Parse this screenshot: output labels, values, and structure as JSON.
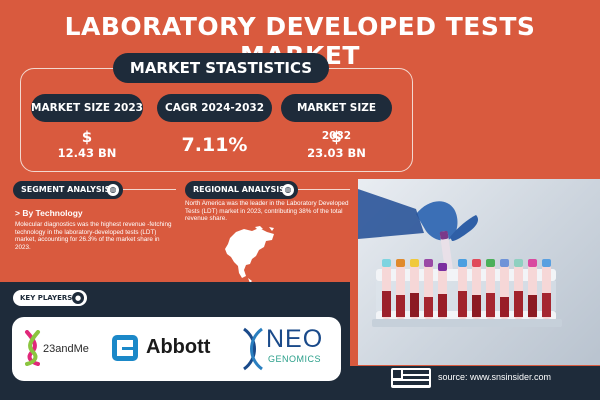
{
  "title": "LABORATORY DEVELOPED TESTS MARKET",
  "stats_heading": "MARKET STASTISTICS",
  "stats": [
    {
      "label": "MARKET SIZE 2023",
      "prefix": "$",
      "value": "12.43 BN"
    },
    {
      "label": "CAGR 2024-2032",
      "prefix": "",
      "value": "7.11%"
    },
    {
      "label": "MARKET SIZE 2032",
      "prefix": "$",
      "value": "23.03 BN"
    }
  ],
  "segment": {
    "heading": "SEGMENT ANALYSIS",
    "subheading": "> By Technology",
    "text": "Molecular diagnostics was the highest revenue -fetching technology in the laboratory-developed tests (LDT) market, accounting for 26.3% of the market share in 2023."
  },
  "regional": {
    "heading": "REGIONAL ANALYSIS",
    "text": "North America was the leader in the Laboratory Developed Tests (LDT) market in 2023, contributing 38% of the total revenue share."
  },
  "key_players": {
    "heading": "KEY PLAYERS",
    "logos": [
      "23andMe",
      "Abbott",
      "NEO",
      "GENOMICS"
    ]
  },
  "source": "source: www.snsinsider.com",
  "colors": {
    "background": "#d95a3e",
    "navy": "#1e2b3a",
    "white": "#ffffff"
  }
}
